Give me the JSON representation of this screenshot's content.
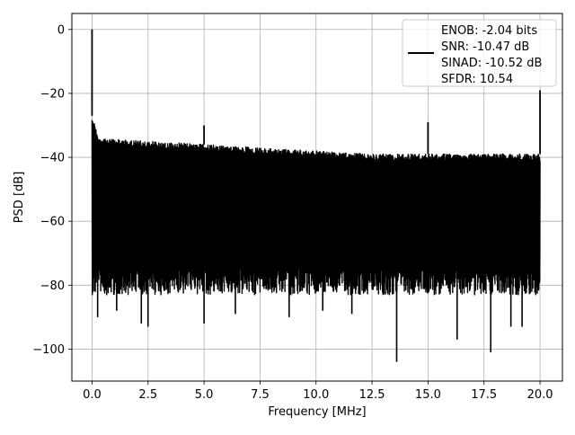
{
  "chart_data": {
    "type": "line",
    "title": "",
    "xlabel": "Frequency [MHz]",
    "ylabel": "PSD [dB]",
    "xlim": [
      -0.9,
      21.0
    ],
    "ylim": [
      -110,
      5
    ],
    "xticks": [
      0.0,
      2.5,
      5.0,
      7.5,
      10.0,
      12.5,
      15.0,
      17.5,
      20.0
    ],
    "xtick_labels": [
      "0.0",
      "2.5",
      "5.0",
      "7.5",
      "10.0",
      "12.5",
      "15.0",
      "17.5",
      "20.0"
    ],
    "yticks": [
      0,
      -20,
      -40,
      -60,
      -80,
      -100
    ],
    "ytick_labels": [
      "0",
      "−20",
      "−40",
      "−60",
      "−80",
      "−100"
    ],
    "grid": true,
    "legend_position": "top-right",
    "series": [
      {
        "name": "ENOB: -2.04 bits\nSNR: -10.47 dB\nSINAD: -10.52 dB\nSFDR: 10.54",
        "color": "#000000",
        "noise_floor": {
          "x_range": [
            0.0,
            20.0
          ],
          "upper_envelope": [
            {
              "x": 0.0,
              "y": -27
            },
            {
              "x": 0.3,
              "y": -34
            },
            {
              "x": 2.5,
              "y": -35
            },
            {
              "x": 5.0,
              "y": -36
            },
            {
              "x": 7.5,
              "y": -37
            },
            {
              "x": 10.0,
              "y": -38
            },
            {
              "x": 12.5,
              "y": -39
            },
            {
              "x": 15.0,
              "y": -39
            },
            {
              "x": 17.5,
              "y": -39
            },
            {
              "x": 20.0,
              "y": -39
            }
          ],
          "typical_lower": -75,
          "deep_nulls": [
            {
              "x": 0.25,
              "y": -90
            },
            {
              "x": 1.1,
              "y": -88
            },
            {
              "x": 2.2,
              "y": -92
            },
            {
              "x": 2.5,
              "y": -93
            },
            {
              "x": 5.0,
              "y": -92
            },
            {
              "x": 6.4,
              "y": -89
            },
            {
              "x": 8.8,
              "y": -90
            },
            {
              "x": 10.3,
              "y": -88
            },
            {
              "x": 11.6,
              "y": -89
            },
            {
              "x": 13.6,
              "y": -104
            },
            {
              "x": 16.3,
              "y": -97
            },
            {
              "x": 17.8,
              "y": -101
            },
            {
              "x": 18.7,
              "y": -93
            },
            {
              "x": 19.2,
              "y": -93
            }
          ]
        },
        "spurs": [
          {
            "x": 0.0,
            "y": 0
          },
          {
            "x": 5.0,
            "y": -30
          },
          {
            "x": 15.0,
            "y": -29
          },
          {
            "x": 20.0,
            "y": -19
          }
        ]
      }
    ]
  }
}
